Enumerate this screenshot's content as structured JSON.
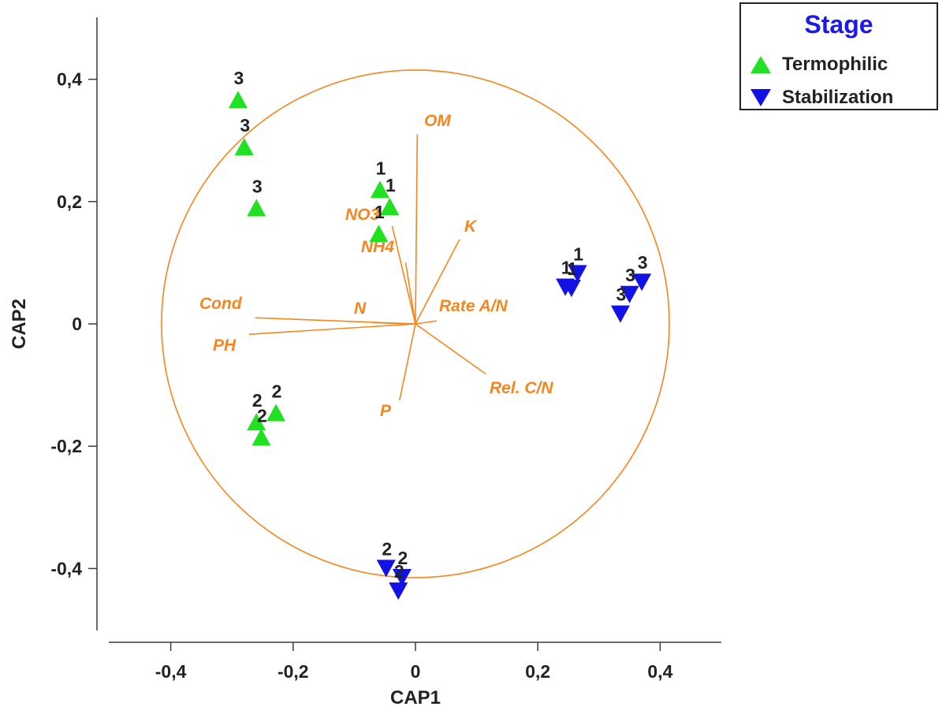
{
  "chart_data": {
    "type": "scatter",
    "xlabel": "CAP1",
    "ylabel": "CAP2",
    "xlim": [
      -0.5,
      0.5
    ],
    "ylim": [
      -0.5,
      0.5
    ],
    "x_ticks": [
      "-0,4",
      "-0,2",
      "0",
      "0,2",
      "0,4"
    ],
    "y_ticks": [
      "-0,4",
      "-0,2",
      "0",
      "0,2",
      "0,4"
    ],
    "legend": {
      "title": "Stage",
      "placement": "top-right, outside plot",
      "entries": [
        "Termophilic",
        "Stabilization"
      ]
    },
    "series": [
      {
        "name": "Termophilic",
        "marker": "triangle-up",
        "color": "#22e022",
        "points": [
          {
            "x": -0.29,
            "y": 0.367,
            "label": "3"
          },
          {
            "x": -0.28,
            "y": 0.29,
            "label": "3"
          },
          {
            "x": -0.26,
            "y": 0.19,
            "label": "3"
          },
          {
            "x": -0.058,
            "y": 0.22,
            "label": "1"
          },
          {
            "x": -0.042,
            "y": 0.192,
            "label": "1"
          },
          {
            "x": -0.06,
            "y": 0.148,
            "label": "1"
          },
          {
            "x": -0.228,
            "y": -0.145,
            "label": "2"
          },
          {
            "x": -0.26,
            "y": -0.16,
            "label": "2"
          },
          {
            "x": -0.252,
            "y": -0.185,
            "label": "2"
          }
        ]
      },
      {
        "name": "Stabilization",
        "marker": "triangle-down",
        "color": "#1212e6",
        "points": [
          {
            "x": 0.265,
            "y": 0.082,
            "label": "1"
          },
          {
            "x": 0.255,
            "y": 0.058,
            "label": "1"
          },
          {
            "x": 0.245,
            "y": 0.06,
            "label": "1"
          },
          {
            "x": 0.37,
            "y": 0.068,
            "label": "3"
          },
          {
            "x": 0.35,
            "y": 0.048,
            "label": "3"
          },
          {
            "x": 0.335,
            "y": 0.016,
            "label": "3"
          },
          {
            "x": -0.048,
            "y": -0.4,
            "label": "2"
          },
          {
            "x": -0.022,
            "y": -0.415,
            "label": "2"
          },
          {
            "x": -0.028,
            "y": -0.437,
            "label": "2"
          }
        ]
      }
    ],
    "correlation_circle": {
      "center": [
        0,
        0
      ],
      "radius": 0.415,
      "color": "#f5861f"
    },
    "vectors": [
      {
        "label": "OM",
        "x": 0.003,
        "y": 0.31
      },
      {
        "label": "K",
        "x": 0.072,
        "y": 0.138
      },
      {
        "label": "NO3",
        "x": -0.038,
        "y": 0.16
      },
      {
        "label": "NH4",
        "x": -0.016,
        "y": 0.1
      },
      {
        "label": "Cond",
        "x": -0.262,
        "y": 0.01
      },
      {
        "label": "N",
        "x": -0.07,
        "y": 0.002
      },
      {
        "label": "PH",
        "x": -0.272,
        "y": -0.017
      },
      {
        "label": "Rate A/N",
        "x": 0.035,
        "y": 0.005
      },
      {
        "label": "Rel. C/N",
        "x": 0.115,
        "y": -0.082
      },
      {
        "label": "P",
        "x": -0.026,
        "y": -0.125
      }
    ]
  }
}
